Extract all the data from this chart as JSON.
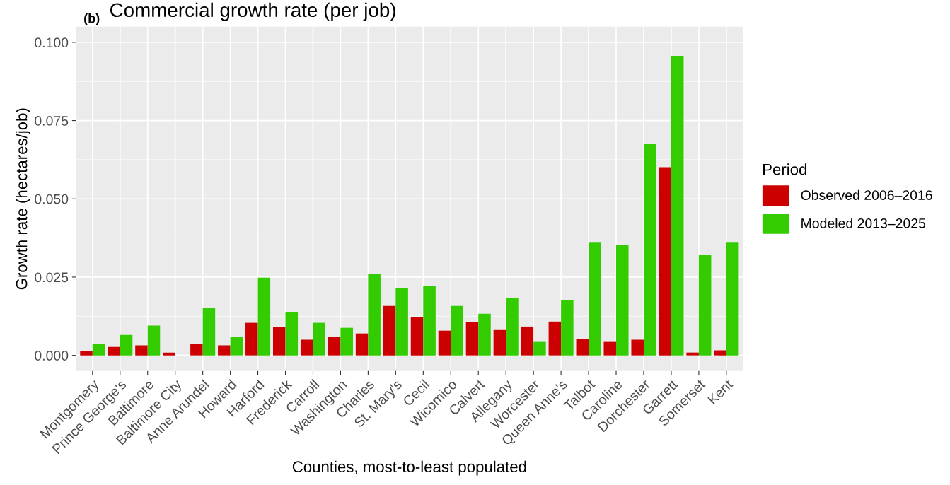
{
  "chart_data": {
    "type": "bar",
    "title": "Commercial growth rate (per job)",
    "annotations": [
      "(b)"
    ],
    "xlabel": "Counties, most-to-least populated",
    "ylabel": "Growth rate (hectares/job)",
    "legend_title": "Period",
    "categories": [
      "Montgomery",
      "Prince George's",
      "Baltimore",
      "Baltimore City",
      "Anne Arundel",
      "Howard",
      "Harford",
      "Frederick",
      "Carroll",
      "Washington",
      "Charles",
      "St. Mary's",
      "Cecil",
      "Wicomico",
      "Calvert",
      "Allegany",
      "Worcester",
      "Queen Anne's",
      "Talbot",
      "Caroline",
      "Dorchester",
      "Garrett",
      "Somerset",
      "Kent"
    ],
    "series": [
      {
        "name": "Observed 2006–2016",
        "color": "#cc0000",
        "values": [
          0.0014,
          0.0027,
          0.0032,
          0.0009,
          0.0036,
          0.0032,
          0.0104,
          0.009,
          0.005,
          0.0059,
          0.007,
          0.0158,
          0.0122,
          0.0079,
          0.0106,
          0.0081,
          0.0092,
          0.0108,
          0.0052,
          0.0043,
          0.005,
          0.0601,
          0.0009,
          0.0016
        ]
      },
      {
        "name": "Modeled 2013–2025",
        "color": "#33cc00",
        "values": [
          0.0036,
          0.0065,
          0.0095,
          0,
          0.0153,
          0.0059,
          0.0248,
          0.0137,
          0.0104,
          0.0088,
          0.0261,
          0.0214,
          0.0223,
          0.0158,
          0.0133,
          0.0182,
          0.0043,
          0.0176,
          0.036,
          0.0354,
          0.0676,
          0.0957,
          0.0322,
          0.036
        ]
      }
    ],
    "ylim": [
      -0.005,
      0.105
    ],
    "yticks": [
      {
        "value": 0,
        "label": "0.000"
      },
      {
        "value": 0.025,
        "label": "0.025"
      },
      {
        "value": 0.05,
        "label": "0.050"
      },
      {
        "value": 0.075,
        "label": "0.075"
      },
      {
        "value": 0.1,
        "label": "0.100"
      }
    ],
    "grid": true,
    "legend": "right"
  }
}
